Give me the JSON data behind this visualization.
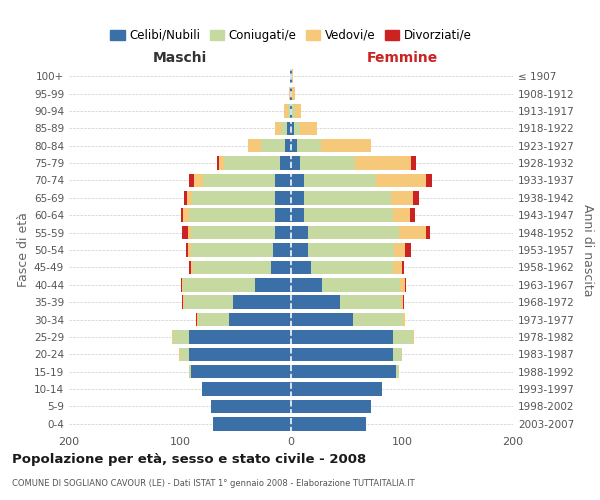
{
  "age_groups": [
    "0-4",
    "5-9",
    "10-14",
    "15-19",
    "20-24",
    "25-29",
    "30-34",
    "35-39",
    "40-44",
    "45-49",
    "50-54",
    "55-59",
    "60-64",
    "65-69",
    "70-74",
    "75-79",
    "80-84",
    "85-89",
    "90-94",
    "95-99",
    "100+"
  ],
  "birth_years": [
    "2003-2007",
    "1998-2002",
    "1993-1997",
    "1988-1992",
    "1983-1987",
    "1978-1982",
    "1973-1977",
    "1968-1972",
    "1963-1967",
    "1958-1962",
    "1953-1957",
    "1948-1952",
    "1943-1947",
    "1938-1942",
    "1933-1937",
    "1928-1932",
    "1923-1927",
    "1918-1922",
    "1913-1917",
    "1908-1912",
    "≤ 1907"
  ],
  "colors": {
    "celibi": "#3a6fa8",
    "coniugati": "#c5d9a0",
    "vedovi": "#f5c87a",
    "divorziati": "#cc2222"
  },
  "maschi_celibi": [
    70,
    72,
    80,
    90,
    92,
    92,
    56,
    52,
    32,
    18,
    16,
    14,
    14,
    14,
    14,
    10,
    5,
    4,
    1,
    1,
    1
  ],
  "maschi_coniugati": [
    0,
    0,
    0,
    2,
    8,
    14,
    28,
    44,
    65,
    70,
    74,
    76,
    78,
    75,
    65,
    50,
    22,
    5,
    2,
    0,
    0
  ],
  "maschi_vedovi": [
    0,
    0,
    0,
    0,
    1,
    1,
    1,
    1,
    1,
    2,
    3,
    3,
    5,
    5,
    8,
    5,
    12,
    5,
    3,
    1,
    0
  ],
  "maschi_divorziati": [
    0,
    0,
    0,
    0,
    0,
    0,
    1,
    1,
    1,
    2,
    2,
    5,
    2,
    2,
    5,
    2,
    0,
    0,
    0,
    0,
    0
  ],
  "femmine_celibi": [
    68,
    72,
    82,
    95,
    92,
    92,
    56,
    44,
    28,
    18,
    15,
    15,
    12,
    12,
    12,
    8,
    5,
    3,
    1,
    1,
    1
  ],
  "femmine_coniugati": [
    0,
    0,
    0,
    2,
    8,
    18,
    45,
    55,
    70,
    74,
    78,
    82,
    80,
    78,
    65,
    50,
    22,
    5,
    3,
    0,
    0
  ],
  "femmine_vedovi": [
    0,
    0,
    0,
    0,
    0,
    1,
    2,
    2,
    5,
    8,
    10,
    25,
    15,
    20,
    45,
    50,
    45,
    15,
    5,
    3,
    1
  ],
  "femmine_divorziati": [
    0,
    0,
    0,
    0,
    0,
    0,
    0,
    1,
    1,
    2,
    5,
    3,
    5,
    5,
    5,
    5,
    0,
    0,
    0,
    0,
    0
  ],
  "title": "Popolazione per età, sesso e stato civile - 2008",
  "subtitle": "COMUNE DI SOGLIANO CAVOUR (LE) - Dati ISTAT 1° gennaio 2008 - Elaborazione TUTTAITALIA.IT",
  "label_maschi": "Maschi",
  "label_femmine": "Femmine",
  "ylabel_left": "Fasce di età",
  "ylabel_right": "Anni di nascita",
  "legend_labels": [
    "Celibi/Nubili",
    "Coniugati/e",
    "Vedovi/e",
    "Divorziati/e"
  ],
  "xlim": 200,
  "grid_color": "#cccccc"
}
